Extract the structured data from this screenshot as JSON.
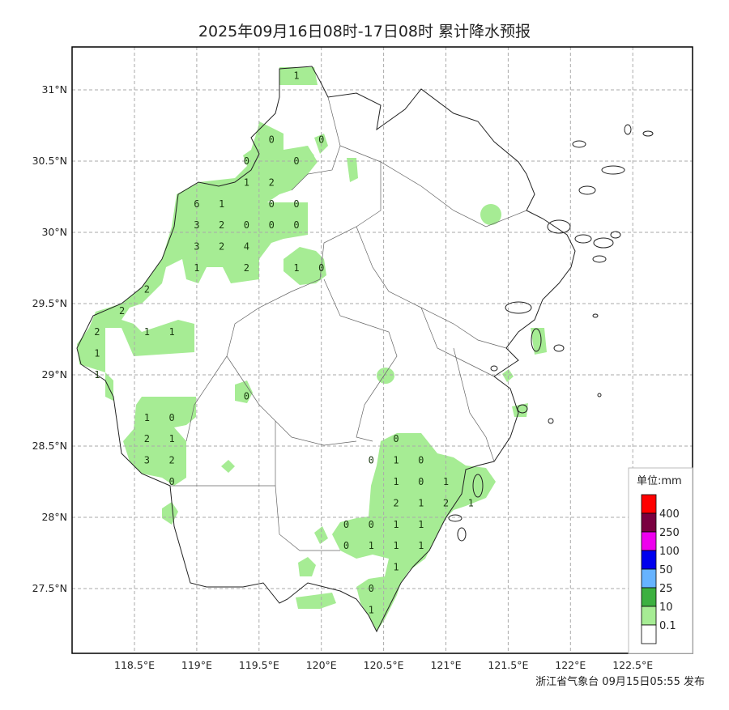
{
  "title": "2025年09月16日08时-17日08时 累计降水预报",
  "footer": "浙江省气象台 09月15日05:55 发布",
  "axes": {
    "lon_labels": [
      {
        "lon": 118.5,
        "label": "118.5°E"
      },
      {
        "lon": 119,
        "label": "119°E"
      },
      {
        "lon": 119.5,
        "label": "119.5°E"
      },
      {
        "lon": 120,
        "label": "120°E"
      },
      {
        "lon": 120.5,
        "label": "120.5°E"
      },
      {
        "lon": 121,
        "label": "121°E"
      },
      {
        "lon": 121.5,
        "label": "121.5°E"
      },
      {
        "lon": 122,
        "label": "122°E"
      },
      {
        "lon": 122.5,
        "label": "122.5°E"
      }
    ],
    "lat_labels": [
      {
        "lat": 31,
        "label": "31°N"
      },
      {
        "lat": 30.5,
        "label": "30.5°N"
      },
      {
        "lat": 30,
        "label": "30°N"
      },
      {
        "lat": 29.5,
        "label": "29.5°N"
      },
      {
        "lat": 29,
        "label": "29°N"
      },
      {
        "lat": 28.5,
        "label": "28.5°N"
      },
      {
        "lat": 28,
        "label": "28°N"
      },
      {
        "lat": 27.5,
        "label": "27.5°N"
      }
    ],
    "grid": true
  },
  "legend": {
    "title": "单位:mm",
    "levels": [
      {
        "label": "",
        "color": "#ff0000"
      },
      {
        "label": "400",
        "color": "#7a0040"
      },
      {
        "label": "250",
        "color": "#ee00ee"
      },
      {
        "label": "100",
        "color": "#0000ee"
      },
      {
        "label": "50",
        "color": "#66b3ff"
      },
      {
        "label": "25",
        "color": "#3cb040"
      },
      {
        "label": "10",
        "color": "#a6ec94"
      },
      {
        "label": "0.1",
        "color": "#ffffff"
      }
    ]
  },
  "map_data": {
    "rain_fill_color": "#a6ec94",
    "stations": [
      {
        "lon": 119.8,
        "lat": 31.1,
        "v": "1"
      },
      {
        "lon": 119.6,
        "lat": 30.65,
        "v": "0"
      },
      {
        "lon": 120.0,
        "lat": 30.65,
        "v": "0"
      },
      {
        "lon": 119.4,
        "lat": 30.5,
        "v": "0"
      },
      {
        "lon": 119.8,
        "lat": 30.5,
        "v": "0"
      },
      {
        "lon": 119.4,
        "lat": 30.35,
        "v": "1"
      },
      {
        "lon": 119.6,
        "lat": 30.35,
        "v": "2"
      },
      {
        "lon": 119.0,
        "lat": 30.2,
        "v": "6"
      },
      {
        "lon": 119.2,
        "lat": 30.2,
        "v": "1"
      },
      {
        "lon": 119.6,
        "lat": 30.2,
        "v": "0"
      },
      {
        "lon": 119.8,
        "lat": 30.2,
        "v": "0"
      },
      {
        "lon": 119.0,
        "lat": 30.05,
        "v": "3"
      },
      {
        "lon": 119.2,
        "lat": 30.05,
        "v": "2"
      },
      {
        "lon": 119.4,
        "lat": 30.05,
        "v": "0"
      },
      {
        "lon": 119.6,
        "lat": 30.05,
        "v": "0"
      },
      {
        "lon": 119.8,
        "lat": 30.05,
        "v": "0"
      },
      {
        "lon": 119.0,
        "lat": 29.9,
        "v": "3"
      },
      {
        "lon": 119.2,
        "lat": 29.9,
        "v": "2"
      },
      {
        "lon": 119.4,
        "lat": 29.9,
        "v": "4"
      },
      {
        "lon": 119.0,
        "lat": 29.75,
        "v": "1"
      },
      {
        "lon": 119.4,
        "lat": 29.75,
        "v": "2"
      },
      {
        "lon": 119.8,
        "lat": 29.75,
        "v": "1"
      },
      {
        "lon": 120.0,
        "lat": 29.75,
        "v": "0"
      },
      {
        "lon": 118.6,
        "lat": 29.6,
        "v": "2"
      },
      {
        "lon": 118.4,
        "lat": 29.45,
        "v": "2"
      },
      {
        "lon": 118.2,
        "lat": 29.3,
        "v": "2"
      },
      {
        "lon": 118.6,
        "lat": 29.3,
        "v": "1"
      },
      {
        "lon": 118.8,
        "lat": 29.3,
        "v": "1"
      },
      {
        "lon": 118.2,
        "lat": 29.15,
        "v": "1"
      },
      {
        "lon": 118.2,
        "lat": 29.0,
        "v": "1"
      },
      {
        "lon": 119.4,
        "lat": 28.85,
        "v": "0"
      },
      {
        "lon": 118.6,
        "lat": 28.7,
        "v": "1"
      },
      {
        "lon": 118.8,
        "lat": 28.7,
        "v": "0"
      },
      {
        "lon": 118.6,
        "lat": 28.55,
        "v": "2"
      },
      {
        "lon": 118.8,
        "lat": 28.55,
        "v": "1"
      },
      {
        "lon": 118.6,
        "lat": 28.4,
        "v": "3"
      },
      {
        "lon": 118.8,
        "lat": 28.4,
        "v": "2"
      },
      {
        "lon": 118.8,
        "lat": 28.25,
        "v": "0"
      },
      {
        "lon": 120.6,
        "lat": 28.55,
        "v": "0"
      },
      {
        "lon": 120.4,
        "lat": 28.4,
        "v": "0"
      },
      {
        "lon": 120.6,
        "lat": 28.4,
        "v": "1"
      },
      {
        "lon": 120.8,
        "lat": 28.4,
        "v": "0"
      },
      {
        "lon": 120.6,
        "lat": 28.25,
        "v": "1"
      },
      {
        "lon": 120.8,
        "lat": 28.25,
        "v": "0"
      },
      {
        "lon": 121.0,
        "lat": 28.25,
        "v": "1"
      },
      {
        "lon": 120.6,
        "lat": 28.1,
        "v": "2"
      },
      {
        "lon": 120.8,
        "lat": 28.1,
        "v": "1"
      },
      {
        "lon": 121.0,
        "lat": 28.1,
        "v": "2"
      },
      {
        "lon": 121.2,
        "lat": 28.1,
        "v": "1"
      },
      {
        "lon": 120.2,
        "lat": 27.95,
        "v": "0"
      },
      {
        "lon": 120.4,
        "lat": 27.95,
        "v": "0"
      },
      {
        "lon": 120.6,
        "lat": 27.95,
        "v": "1"
      },
      {
        "lon": 120.8,
        "lat": 27.95,
        "v": "1"
      },
      {
        "lon": 120.2,
        "lat": 27.8,
        "v": "0"
      },
      {
        "lon": 120.4,
        "lat": 27.8,
        "v": "1"
      },
      {
        "lon": 120.6,
        "lat": 27.8,
        "v": "1"
      },
      {
        "lon": 120.8,
        "lat": 27.8,
        "v": "1"
      },
      {
        "lon": 120.6,
        "lat": 27.65,
        "v": "1"
      },
      {
        "lon": 120.4,
        "lat": 27.5,
        "v": "0"
      },
      {
        "lon": 120.4,
        "lat": 27.35,
        "v": "1"
      }
    ]
  }
}
